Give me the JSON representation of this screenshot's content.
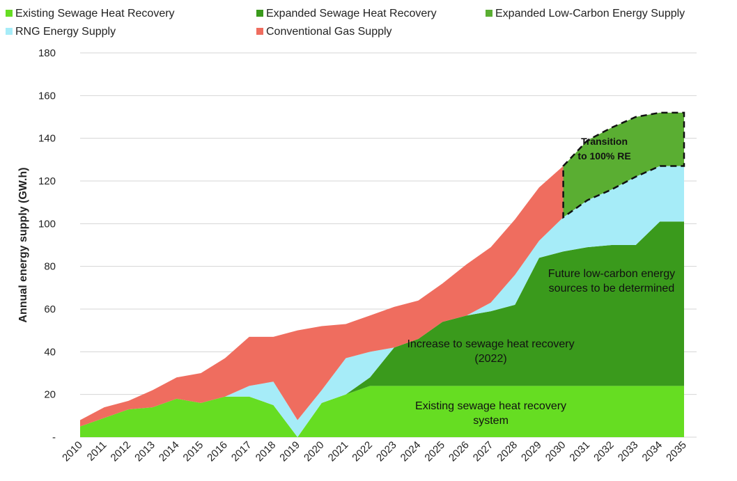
{
  "chart_data": {
    "type": "area",
    "stacked": true,
    "x": [
      2010,
      2011,
      2012,
      2013,
      2014,
      2015,
      2016,
      2017,
      2018,
      2019,
      2020,
      2021,
      2022,
      2023,
      2024,
      2025,
      2026,
      2027,
      2028,
      2029,
      2030,
      2031,
      2032,
      2033,
      2034,
      2035
    ],
    "x_tick_labels": [
      "2010",
      "2011",
      "2012",
      "2013",
      "2014",
      "2015",
      "2016",
      "2017",
      "2018",
      "2019",
      "2020",
      "2021",
      "2022",
      "2023",
      "2024",
      "2025",
      "2026",
      "2027",
      "2028",
      "2029",
      "2030",
      "2031",
      "2032",
      "2033",
      "2034",
      "2035"
    ],
    "series": [
      {
        "name": "Existing Sewage Heat Recovery",
        "color": "#66dd22",
        "values": [
          5,
          9,
          13,
          14,
          18,
          16,
          19,
          19,
          15,
          0,
          16,
          20,
          24,
          24,
          24,
          24,
          24,
          24,
          24,
          24,
          24,
          24,
          24,
          24,
          24,
          24
        ]
      },
      {
        "name": "Expanded Sewage Heat Recovery",
        "color": "#3a9a1c",
        "values": [
          0,
          0,
          0,
          0,
          0,
          0,
          0,
          0,
          0,
          0,
          0,
          0,
          4,
          18,
          22,
          30,
          33,
          35,
          38,
          60,
          63,
          65,
          66,
          66,
          77,
          77
        ]
      },
      {
        "name": "Expanded Low-Carbon Energy Supply",
        "color": "#5aae32",
        "values": [
          0,
          0,
          0,
          0,
          0,
          0,
          0,
          0,
          0,
          0,
          0,
          0,
          0,
          0,
          0,
          0,
          0,
          0,
          0,
          0,
          0,
          0,
          0,
          0,
          0,
          0
        ]
      },
      {
        "name": "RNG Energy Supply",
        "color": "#a6ecf8",
        "values": [
          0,
          0,
          0,
          0,
          0,
          0,
          0,
          5,
          11,
          8,
          6,
          17,
          12,
          0,
          0,
          0,
          0,
          4,
          14,
          8,
          16,
          22,
          26,
          32,
          26,
          26
        ]
      },
      {
        "name": "Conventional Gas Supply",
        "color": "#ef6d5f",
        "values": [
          3,
          5,
          4,
          8,
          10,
          14,
          18,
          23,
          21,
          42,
          30,
          16,
          17,
          19,
          18,
          18,
          24,
          26,
          26,
          25,
          24,
          0,
          0,
          0,
          0,
          0
        ]
      }
    ],
    "transition_region": {
      "label": "Transition to 100% RE",
      "upper": [
        [
          2030,
          127
        ],
        [
          2031,
          139
        ],
        [
          2032,
          145
        ],
        [
          2033,
          150
        ],
        [
          2034,
          152
        ],
        [
          2035,
          152
        ]
      ],
      "lower": [
        [
          2035,
          127
        ],
        [
          2034,
          127
        ],
        [
          2033,
          122
        ],
        [
          2032,
          116
        ],
        [
          2031,
          111
        ],
        [
          2030,
          103
        ]
      ]
    },
    "ylabel": "Annual energy supply (GW.h)",
    "ylim": [
      0,
      180
    ],
    "y_ticks": [
      0,
      20,
      40,
      60,
      80,
      100,
      120,
      140,
      160,
      180
    ],
    "y_tick_labels": [
      "-",
      "20",
      "40",
      "60",
      "80",
      "100",
      "120",
      "140",
      "160",
      "180"
    ],
    "grid": "horizontal",
    "legend_position": "top",
    "annotations": [
      {
        "name": "annotation-transition",
        "lines": [
          "Transition",
          "to 100% RE"
        ],
        "x": 2031.7,
        "y": 137,
        "bold": true
      },
      {
        "name": "annotation-future",
        "lines": [
          "Future low-carbon energy",
          "sources to be determined"
        ],
        "x": 2032.0,
        "y": 75
      },
      {
        "name": "annotation-increase",
        "lines": [
          "Increase to sewage heat recovery",
          "(2022)"
        ],
        "x": 2027.0,
        "y": 42
      },
      {
        "name": "annotation-existing",
        "lines": [
          "Existing sewage heat recovery",
          "system"
        ],
        "x": 2027.0,
        "y": 13
      }
    ]
  }
}
